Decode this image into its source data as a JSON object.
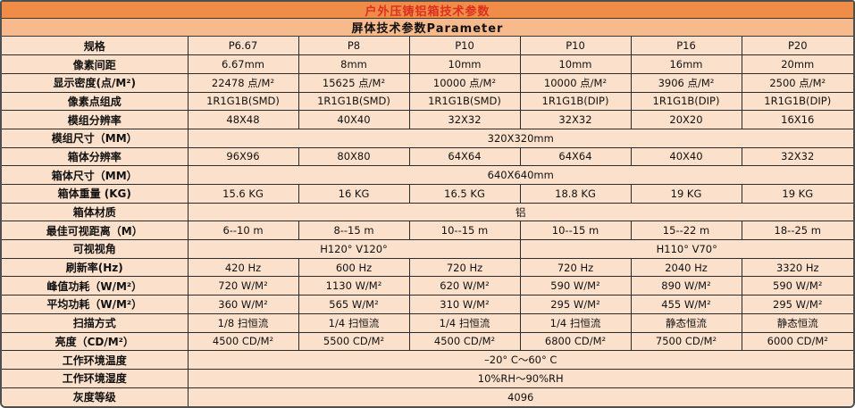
{
  "title": "户外压铸铝箱技术参数",
  "subtitle": "屏体技术参数Parameter",
  "colors": {
    "title_bg": "#ef8c48",
    "title_text": "#dd2f1f",
    "subtitle_bg": "#f7ba8c",
    "cell_bg": "#fbe1cc",
    "border": "#2b2b2b",
    "frame": "#4f4f4f"
  },
  "table": {
    "rows": [
      {
        "label": "规格",
        "cells": [
          "P6.67",
          "P8",
          "P10",
          "P10",
          "P16",
          "P20"
        ]
      },
      {
        "label": "像素间距",
        "cells": [
          "6.67mm",
          "8mm",
          "10mm",
          "10mm",
          "16mm",
          "20mm"
        ]
      },
      {
        "label": "显示密度(点/M²)",
        "cells": [
          "22478 点/M²",
          "15625 点/M²",
          "10000 点/M²",
          "10000 点/M²",
          "3906 点/M²",
          "2500 点/M²"
        ]
      },
      {
        "label": "像素点组成",
        "cells": [
          "1R1G1B(SMD)",
          "1R1G1B(SMD)",
          "1R1G1B(SMD)",
          "1R1G1B(DIP)",
          "1R1G1B(DIP)",
          "1R1G1B(DIP)"
        ]
      },
      {
        "label": "模组分辨率",
        "cells": [
          "48X48",
          "40X40",
          "32X32",
          "32X32",
          "20X20",
          "16X16"
        ]
      },
      {
        "label": "模组尺寸（MM）",
        "merged": "320X320mm"
      },
      {
        "label": "箱体分辨率",
        "cells": [
          "96X96",
          "80X80",
          "64X64",
          "64X64",
          "40X40",
          "32X32"
        ]
      },
      {
        "label": "箱体尺寸（MM）",
        "merged": "640X640mm"
      },
      {
        "label": "箱体重量 (KG)",
        "cells": [
          "15.6 KG",
          "16 KG",
          "16.5 KG",
          "18.8 KG",
          "19 KG",
          "19 KG"
        ]
      },
      {
        "label": "箱体材质",
        "merged": "铝"
      },
      {
        "label": "最佳可视距离（M）",
        "cells": [
          "6--10 m",
          "8--15 m",
          "10--15 m",
          "10--15 m",
          "15--22 m",
          "18--25 m"
        ]
      },
      {
        "label": "可视视角",
        "half": [
          "H120°  V120°",
          "H110°  V70°"
        ]
      },
      {
        "label": "刷新率(Hz)",
        "cells": [
          "420 Hz",
          "600 Hz",
          "720 Hz",
          "720 Hz",
          "2040 Hz",
          "3320 Hz"
        ]
      },
      {
        "label": "峰值功耗（W/M²）",
        "cells": [
          "720 W/M²",
          "1130 W/M²",
          "620 W/M²",
          "590 W/M²",
          "890 W/M²",
          "590 W/M²"
        ]
      },
      {
        "label": "平均功耗（W/M²）",
        "cells": [
          "360 W/M²",
          "565 W/M²",
          "310 W/M²",
          "295 W/M²",
          "455 W/M²",
          "295 W/M²"
        ]
      },
      {
        "label": "扫描方式",
        "cells": [
          "1/8 扫恒流",
          "1/4 扫恒流",
          "1/4 扫恒流",
          "1/4 扫恒流",
          "静态恒流",
          "静态恒流"
        ]
      },
      {
        "label": "亮度（CD/M²）",
        "cells": [
          "4500 CD/M²",
          "5500 CD/M²",
          "4500 CD/M²",
          "6800 CD/M²",
          "7500 CD/M²",
          "6000 CD/M²"
        ]
      },
      {
        "label": "工作环境温度",
        "merged": "–20° C～60° C"
      },
      {
        "label": "工作环境湿度",
        "merged": "10%RH～90%RH"
      },
      {
        "label": "灰度等级",
        "merged": "4096"
      }
    ]
  }
}
